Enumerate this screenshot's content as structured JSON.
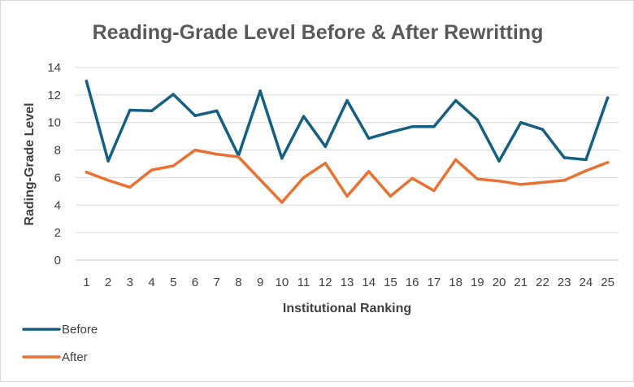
{
  "chart_data": {
    "type": "line",
    "title": "Reading-Grade Level Before & After Rewritting",
    "xlabel": "Institutional Ranking",
    "ylabel": "Rading-Grade Level",
    "categories": [
      "1",
      "2",
      "3",
      "4",
      "5",
      "6",
      "7",
      "8",
      "9",
      "10",
      "11",
      "12",
      "13",
      "14",
      "15",
      "16",
      "17",
      "18",
      "19",
      "20",
      "21",
      "22",
      "23",
      "24",
      "25"
    ],
    "ylim": [
      0,
      14
    ],
    "yticks": [
      "0",
      "2",
      "4",
      "6",
      "8",
      "10",
      "12",
      "14"
    ],
    "grid": true,
    "legend_position": "bottom-left",
    "series": [
      {
        "name": "Before",
        "color": "#156082",
        "values": [
          13.0,
          7.2,
          10.9,
          10.85,
          12.05,
          10.5,
          10.85,
          7.6,
          12.3,
          7.4,
          10.45,
          8.25,
          11.6,
          8.85,
          9.3,
          9.7,
          9.7,
          11.6,
          10.2,
          7.2,
          10.0,
          9.5,
          7.45,
          7.3,
          11.8
        ]
      },
      {
        "name": "After",
        "color": "#E97132",
        "values": [
          6.4,
          5.8,
          5.3,
          6.55,
          6.85,
          8.0,
          7.7,
          7.5,
          5.85,
          4.2,
          6.0,
          7.05,
          4.65,
          6.45,
          4.65,
          5.95,
          5.05,
          7.3,
          5.9,
          5.75,
          5.5,
          5.65,
          5.8,
          6.5,
          7.1
        ]
      }
    ]
  }
}
